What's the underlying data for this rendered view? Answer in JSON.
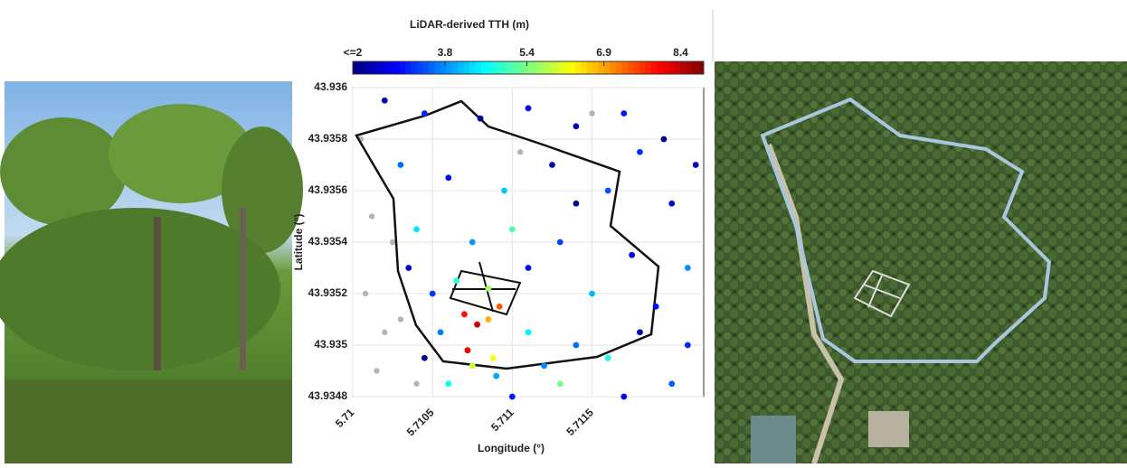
{
  "chart_data": {
    "type": "scatter",
    "title": "LiDAR-derived TTH (m)",
    "x_label": "Longitude (°)",
    "y_label": "Latitude (°)",
    "xlim": [
      5.71,
      5.7122
    ],
    "ylim": [
      43.9348,
      43.936
    ],
    "xticks": [
      5.71,
      5.7105,
      5.711,
      5.7115
    ],
    "yticks": [
      43.9348,
      43.935,
      43.9352,
      43.9354,
      43.9356,
      43.9358,
      43.936
    ],
    "colorbar_lim": [
      2,
      8.85
    ],
    "colorbar_ticks": [
      {
        "value": 2,
        "label": "<=2"
      },
      3.8,
      5.4,
      6.9,
      8.4
    ],
    "colormap": "jet",
    "x": [
      5.7102,
      5.71045,
      5.7108,
      5.7111,
      5.7114,
      5.7117,
      5.71195,
      5.7103,
      5.7106,
      5.71095,
      5.71125,
      5.7116,
      5.712,
      5.7104,
      5.71075,
      5.711,
      5.7113,
      5.71175,
      5.7121,
      5.7105,
      5.71065,
      5.71085,
      5.7115,
      5.7119,
      5.71055,
      5.7107,
      5.71078,
      5.71085,
      5.71092,
      5.71072,
      5.71088,
      5.7111,
      5.7114,
      5.7118,
      5.7121,
      5.7106,
      5.711,
      5.7113,
      5.7117,
      5.712,
      5.71045,
      5.71075,
      5.7109,
      5.7112,
      5.7116,
      5.71035,
      5.7111,
      5.7114,
      5.7118,
      5.71215
    ],
    "y": [
      43.93595,
      43.9359,
      43.93588,
      43.93592,
      43.93585,
      43.9359,
      43.9358,
      43.9357,
      43.93565,
      43.9356,
      43.9357,
      43.9356,
      43.93555,
      43.93545,
      43.9354,
      43.93545,
      43.9354,
      43.93535,
      43.9353,
      43.9352,
      43.93525,
      43.93522,
      43.9352,
      43.93515,
      43.93505,
      43.93512,
      43.93508,
      43.9351,
      43.93515,
      43.93498,
      43.93495,
      43.93505,
      43.935,
      43.93505,
      43.935,
      43.93485,
      43.9348,
      43.93485,
      43.9348,
      43.93485,
      43.93495,
      43.93492,
      43.93488,
      43.93492,
      43.93495,
      43.9353,
      43.9353,
      43.93555,
      43.93575,
      43.9357
    ],
    "values": [
      2.4,
      3.1,
      2.2,
      2.8,
      2.5,
      3.0,
      2.1,
      3.6,
      2.9,
      4.2,
      2.3,
      3.4,
      2.6,
      4.4,
      3.9,
      5.1,
      3.3,
      2.7,
      3.8,
      3.2,
      4.8,
      5.6,
      4.1,
      2.9,
      3.7,
      7.9,
      8.3,
      6.8,
      7.4,
      8.1,
      6.2,
      4.5,
      3.6,
      2.4,
      3.1,
      4.6,
      3.0,
      5.3,
      2.8,
      3.5,
      2.2,
      5.9,
      4.0,
      3.8,
      4.7,
      2.5,
      2.9,
      2.1,
      3.2,
      2.4
    ],
    "no_data_color": "#b4b4b4",
    "no_data_x": [
      5.71005,
      5.71012,
      5.71008,
      5.7102,
      5.71015,
      5.7103,
      5.71025,
      5.7104,
      5.71105,
      5.7115
    ],
    "no_data_y": [
      43.9358,
      43.9355,
      43.9352,
      43.93505,
      43.9349,
      43.9351,
      43.9354,
      43.93485,
      43.93575,
      43.9359
    ]
  }
}
